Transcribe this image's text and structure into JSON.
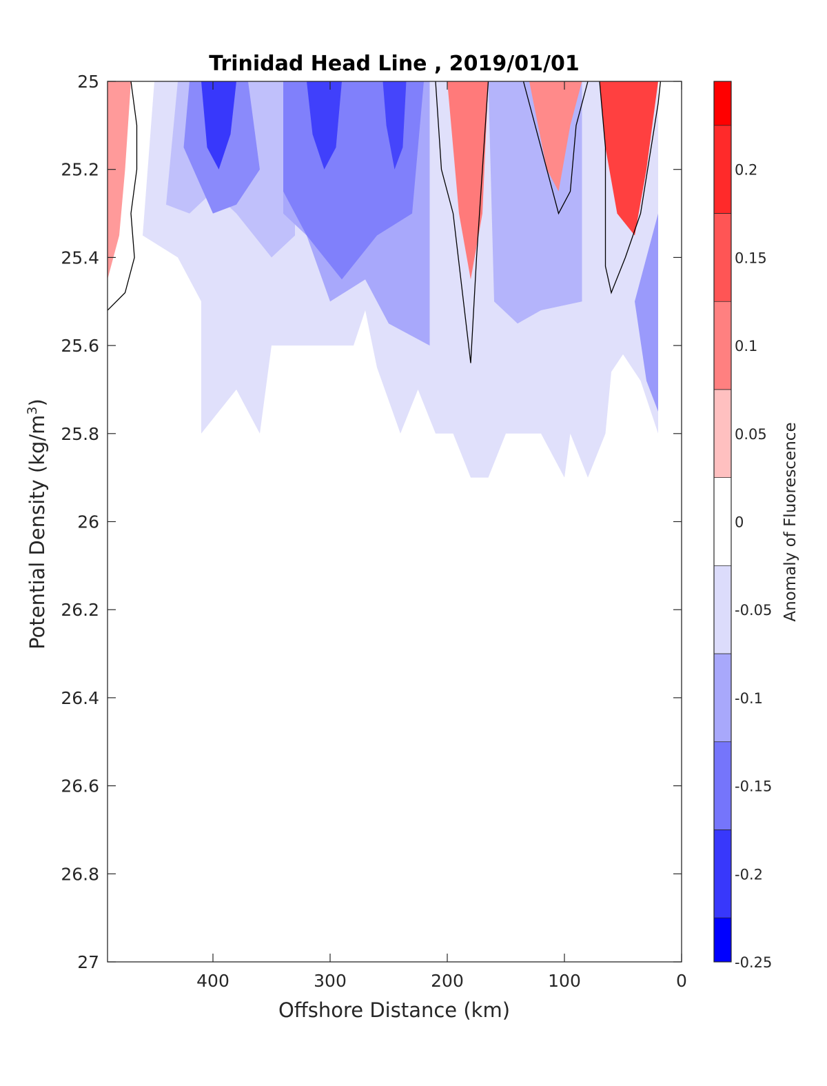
{
  "chart_data": {
    "type": "contour",
    "title": "Trinidad Head Line , 2019/01/01",
    "xlabel": "Offshore Distance (km)",
    "ylabel": "Potential Density (kg/m",
    "ylabel_sup": "3",
    "ylabel_close": ")",
    "xlim": [
      490,
      0
    ],
    "ylim": [
      25,
      27
    ],
    "y_reversed": true,
    "x_reversed": true,
    "xticks": [
      {
        "value": 400,
        "label": "400"
      },
      {
        "value": 300,
        "label": "300"
      },
      {
        "value": 200,
        "label": "200"
      },
      {
        "value": 100,
        "label": "100"
      },
      {
        "value": 0,
        "label": "0"
      }
    ],
    "yticks": [
      {
        "value": 25,
        "label": "25"
      },
      {
        "value": 25.2,
        "label": "25.2"
      },
      {
        "value": 25.4,
        "label": "25.4"
      },
      {
        "value": 25.6,
        "label": "25.6"
      },
      {
        "value": 25.8,
        "label": "25.8"
      },
      {
        "value": 26,
        "label": "26"
      },
      {
        "value": 26.2,
        "label": "26.2"
      },
      {
        "value": 26.4,
        "label": "26.4"
      },
      {
        "value": 26.6,
        "label": "26.6"
      },
      {
        "value": 26.8,
        "label": "26.8"
      },
      {
        "value": 27,
        "label": "27"
      }
    ],
    "colorbar": {
      "label": "Anomaly of Fluorescence",
      "range": [
        -0.25,
        0.25
      ],
      "ticks": [
        {
          "value": 0.2,
          "label": "0.2"
        },
        {
          "value": 0.15,
          "label": "0.15"
        },
        {
          "value": 0.1,
          "label": "0.1"
        },
        {
          "value": 0.05,
          "label": "0.05"
        },
        {
          "value": 0,
          "label": "0"
        },
        {
          "value": -0.05,
          "label": "-0.05"
        },
        {
          "value": -0.1,
          "label": "-0.1"
        },
        {
          "value": -0.15,
          "label": "-0.15"
        },
        {
          "value": -0.2,
          "label": "-0.2"
        },
        {
          "value": -0.25,
          "label": "-0.25"
        }
      ],
      "bands": [
        {
          "from": 0.225,
          "to": 0.25,
          "color": "#ff0000"
        },
        {
          "from": 0.175,
          "to": 0.225,
          "color": "#ff2a2a"
        },
        {
          "from": 0.125,
          "to": 0.175,
          "color": "#ff5555"
        },
        {
          "from": 0.075,
          "to": 0.125,
          "color": "#ff8080"
        },
        {
          "from": 0.025,
          "to": 0.075,
          "color": "#ffc0c0"
        },
        {
          "from": -0.025,
          "to": 0.025,
          "color": "#ffffff"
        },
        {
          "from": -0.075,
          "to": -0.025,
          "color": "#dcdcfb"
        },
        {
          "from": -0.125,
          "to": -0.075,
          "color": "#a8a8fb"
        },
        {
          "from": -0.175,
          "to": -0.125,
          "color": "#7575fb"
        },
        {
          "from": -0.225,
          "to": -0.175,
          "color": "#3838fb"
        },
        {
          "from": -0.25,
          "to": -0.225,
          "color": "#0000ff"
        }
      ]
    },
    "regions": [
      {
        "name": "light-blue-envelope",
        "value": -0.05,
        "color": "#e0e0fb",
        "points": [
          [
            450,
            25
          ],
          [
            20,
            25
          ],
          [
            20,
            25.8
          ],
          [
            35,
            25.68
          ],
          [
            50,
            25.62
          ],
          [
            60,
            25.66
          ],
          [
            65,
            25.8
          ],
          [
            80,
            25.9
          ],
          [
            95,
            25.8
          ],
          [
            100,
            25.9
          ],
          [
            120,
            25.8
          ],
          [
            150,
            25.8
          ],
          [
            165,
            25.9
          ],
          [
            180,
            25.9
          ],
          [
            195,
            25.8
          ],
          [
            210,
            25.8
          ],
          [
            225,
            25.7
          ],
          [
            240,
            25.8
          ],
          [
            260,
            25.65
          ],
          [
            270,
            25.52
          ],
          [
            280,
            25.6
          ],
          [
            350,
            25.6
          ],
          [
            360,
            25.8
          ],
          [
            370,
            25.75
          ],
          [
            380,
            25.7
          ],
          [
            410,
            25.8
          ],
          [
            410,
            25.5
          ],
          [
            430,
            25.4
          ],
          [
            460,
            25.35
          ],
          [
            450,
            25
          ]
        ]
      },
      {
        "name": "mid-blue-west",
        "value": -0.1,
        "color": "#c0c0fb",
        "points": [
          [
            430,
            25
          ],
          [
            330,
            25
          ],
          [
            330,
            25.35
          ],
          [
            350,
            25.4
          ],
          [
            380,
            25.3
          ],
          [
            400,
            25.25
          ],
          [
            420,
            25.3
          ],
          [
            440,
            25.28
          ],
          [
            430,
            25
          ]
        ]
      },
      {
        "name": "mid-blue-central",
        "value": -0.1,
        "color": "#a8a8fb",
        "points": [
          [
            340,
            25
          ],
          [
            215,
            25
          ],
          [
            215,
            25.6
          ],
          [
            250,
            25.55
          ],
          [
            270,
            25.45
          ],
          [
            300,
            25.5
          ],
          [
            320,
            25.35
          ],
          [
            340,
            25.3
          ],
          [
            340,
            25
          ]
        ]
      },
      {
        "name": "mid-blue-east",
        "value": -0.1,
        "color": "#b4b4fb",
        "points": [
          [
            165,
            25
          ],
          [
            85,
            25
          ],
          [
            85,
            25.5
          ],
          [
            120,
            25.52
          ],
          [
            140,
            25.55
          ],
          [
            160,
            25.5
          ],
          [
            165,
            25
          ]
        ]
      },
      {
        "name": "deep-blue-west",
        "value": -0.15,
        "color": "#8a8afb",
        "points": [
          [
            420,
            25
          ],
          [
            370,
            25
          ],
          [
            360,
            25.2
          ],
          [
            380,
            25.28
          ],
          [
            400,
            25.3
          ],
          [
            425,
            25.15
          ],
          [
            420,
            25
          ]
        ]
      },
      {
        "name": "deep-blue-central",
        "value": -0.15,
        "color": "#8080fb",
        "points": [
          [
            340,
            25
          ],
          [
            220,
            25
          ],
          [
            230,
            25.3
          ],
          [
            260,
            25.35
          ],
          [
            290,
            25.45
          ],
          [
            320,
            25.35
          ],
          [
            340,
            25.25
          ],
          [
            340,
            25
          ]
        ]
      },
      {
        "name": "core-blue-west",
        "value": -0.2,
        "color": "#3838fb",
        "points": [
          [
            410,
            25
          ],
          [
            380,
            25
          ],
          [
            385,
            25.12
          ],
          [
            395,
            25.2
          ],
          [
            405,
            25.15
          ],
          [
            410,
            25
          ]
        ]
      },
      {
        "name": "core-blue-central-1",
        "value": -0.2,
        "color": "#4040fb",
        "points": [
          [
            320,
            25
          ],
          [
            290,
            25
          ],
          [
            295,
            25.15
          ],
          [
            305,
            25.2
          ],
          [
            315,
            25.12
          ],
          [
            320,
            25
          ]
        ]
      },
      {
        "name": "core-blue-central-2",
        "value": -0.2,
        "color": "#4545fb",
        "points": [
          [
            255,
            25
          ],
          [
            235,
            25
          ],
          [
            238,
            25.15
          ],
          [
            245,
            25.2
          ],
          [
            252,
            25.1
          ],
          [
            255,
            25
          ]
        ]
      },
      {
        "name": "blue-coast",
        "value": -0.1,
        "color": "#9a9afb",
        "points": [
          [
            35,
            25.45
          ],
          [
            20,
            25.3
          ],
          [
            20,
            25.75
          ],
          [
            30,
            25.68
          ],
          [
            40,
            25.5
          ],
          [
            35,
            25.45
          ]
        ]
      },
      {
        "name": "red-west",
        "value": 0.1,
        "color": "#ff9a9a",
        "points": [
          [
            490,
            25
          ],
          [
            470,
            25
          ],
          [
            475,
            25.2
          ],
          [
            480,
            25.35
          ],
          [
            490,
            25.45
          ],
          [
            490,
            25
          ]
        ]
      },
      {
        "name": "red-200km",
        "value": 0.15,
        "color": "#ff7a7a",
        "points": [
          [
            200,
            25
          ],
          [
            165,
            25
          ],
          [
            170,
            25.3
          ],
          [
            180,
            25.45
          ],
          [
            190,
            25.3
          ],
          [
            200,
            25
          ]
        ]
      },
      {
        "name": "red-110km",
        "value": 0.1,
        "color": "#ff8a8a",
        "points": [
          [
            130,
            25
          ],
          [
            85,
            25
          ],
          [
            95,
            25.1
          ],
          [
            105,
            25.25
          ],
          [
            115,
            25.2
          ],
          [
            130,
            25
          ]
        ]
      },
      {
        "name": "red-45km",
        "value": 0.2,
        "color": "#ff4040",
        "points": [
          [
            70,
            25
          ],
          [
            20,
            25
          ],
          [
            30,
            25.2
          ],
          [
            40,
            25.35
          ],
          [
            55,
            25.3
          ],
          [
            65,
            25.15
          ],
          [
            70,
            25
          ]
        ]
      }
    ],
    "zero_contours": [
      {
        "name": "zero-contour-west",
        "points": [
          [
            470,
            25
          ],
          [
            465,
            25.1
          ],
          [
            465,
            25.2
          ],
          [
            470,
            25.3
          ],
          [
            467,
            25.4
          ],
          [
            475,
            25.48
          ],
          [
            490,
            25.52
          ]
        ]
      },
      {
        "name": "zero-contour-200km",
        "points": [
          [
            210,
            25
          ],
          [
            205,
            25.2
          ],
          [
            195,
            25.3
          ],
          [
            180,
            25.64
          ],
          [
            175,
            25.4
          ],
          [
            170,
            25.2
          ],
          [
            165,
            25
          ]
        ]
      },
      {
        "name": "zero-contour-110km",
        "points": [
          [
            135,
            25
          ],
          [
            120,
            25.15
          ],
          [
            105,
            25.3
          ],
          [
            95,
            25.25
          ],
          [
            90,
            25.1
          ],
          [
            80,
            25
          ]
        ]
      },
      {
        "name": "zero-contour-45km",
        "points": [
          [
            70,
            25
          ],
          [
            65,
            25.15
          ],
          [
            65,
            25.42
          ],
          [
            60,
            25.48
          ],
          [
            48,
            25.4
          ],
          [
            35,
            25.3
          ],
          [
            20,
            25.05
          ],
          [
            18,
            25
          ]
        ]
      }
    ]
  }
}
